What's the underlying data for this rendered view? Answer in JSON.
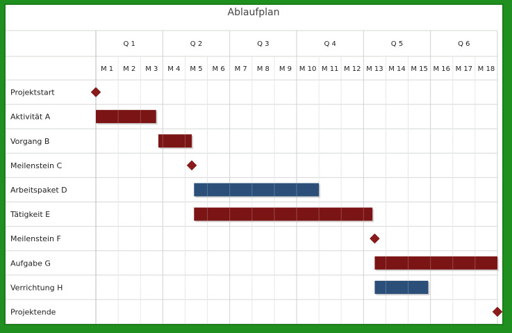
{
  "chart_data": {
    "type": "gantt",
    "title": "Ablaufplan",
    "quarters": [
      "Q 1",
      "Q 2",
      "Q 3",
      "Q 4",
      "Q 5",
      "Q 6"
    ],
    "months": [
      "M 1",
      "M 2",
      "M 3",
      "M 4",
      "M 5",
      "M 6",
      "M 7",
      "M 8",
      "M 9",
      "M 10",
      "M 11",
      "M 12",
      "M 13",
      "M 14",
      "M 15",
      "M 16",
      "M 17",
      "M 18"
    ],
    "tasks": [
      {
        "name": "Projektstart",
        "type": "milestone",
        "at": 0
      },
      {
        "name": "Aktivität A",
        "type": "bar",
        "start": 0,
        "end": 2.7,
        "color": "#7b1414"
      },
      {
        "name": "Vorgang B",
        "type": "bar",
        "start": 2.8,
        "end": 4.3,
        "color": "#7b1414"
      },
      {
        "name": "Meilenstein C",
        "type": "milestone",
        "at": 4.3
      },
      {
        "name": "Arbeitspaket D",
        "type": "bar",
        "start": 4.4,
        "end": 10,
        "color": "#2b4f78"
      },
      {
        "name": "Tätigkeit E",
        "type": "bar",
        "start": 4.4,
        "end": 12.4,
        "color": "#7b1414"
      },
      {
        "name": "Meilenstein F",
        "type": "milestone",
        "at": 12.5
      },
      {
        "name": "Aufgabe G",
        "type": "bar",
        "start": 12.5,
        "end": 18,
        "color": "#7b1414"
      },
      {
        "name": "Verrichtung H",
        "type": "bar",
        "start": 12.5,
        "end": 14.9,
        "color": "#2b4f78"
      },
      {
        "name": "Projektende",
        "type": "milestone",
        "at": 18
      }
    ],
    "grid": true,
    "colors": {
      "milestone": "#8b1a1a",
      "bar_red": "#7b1414",
      "bar_blue": "#2b4f78",
      "frame": "#1f8f1f"
    }
  }
}
